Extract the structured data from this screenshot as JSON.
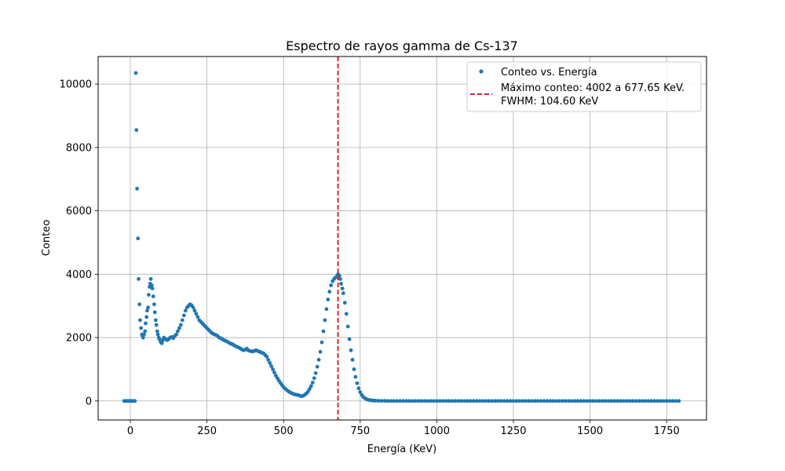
{
  "chart_data": {
    "type": "scatter",
    "title": "Espectro de rayos gamma de Cs-137",
    "xlabel": "Energía (KeV)",
    "ylabel": "Conteo",
    "xlim": [
      -105,
      1880
    ],
    "ylim": [
      -600,
      10870
    ],
    "xticks": [
      0,
      250,
      500,
      750,
      1000,
      1250,
      1500,
      1750
    ],
    "yticks": [
      0,
      2000,
      4000,
      6000,
      8000,
      10000
    ],
    "grid": true,
    "legend_position": "top-right",
    "series": [
      {
        "name": "Conteo vs. Energía",
        "color": "#1f77b4",
        "points": [
          [
            -20,
            0
          ],
          [
            -15,
            0
          ],
          [
            -10,
            0
          ],
          [
            -5,
            0
          ],
          [
            0,
            0
          ],
          [
            5,
            0
          ],
          [
            10,
            0
          ],
          [
            15,
            0
          ],
          [
            18,
            10350
          ],
          [
            20,
            8550
          ],
          [
            22,
            6700
          ],
          [
            25,
            5130
          ],
          [
            27,
            3850
          ],
          [
            30,
            3050
          ],
          [
            32,
            2550
          ],
          [
            35,
            2300
          ],
          [
            38,
            2100
          ],
          [
            40,
            2050
          ],
          [
            42,
            2000
          ],
          [
            45,
            2100
          ],
          [
            48,
            2200
          ],
          [
            50,
            2450
          ],
          [
            53,
            2650
          ],
          [
            55,
            2850
          ],
          [
            58,
            2950
          ],
          [
            60,
            3350
          ],
          [
            63,
            3600
          ],
          [
            65,
            3700
          ],
          [
            67,
            3850
          ],
          [
            70,
            3650
          ],
          [
            72,
            3550
          ],
          [
            75,
            3300
          ],
          [
            78,
            3050
          ],
          [
            80,
            2800
          ],
          [
            83,
            2550
          ],
          [
            85,
            2400
          ],
          [
            88,
            2200
          ],
          [
            90,
            2100
          ],
          [
            93,
            2000
          ],
          [
            95,
            1950
          ],
          [
            98,
            1900
          ],
          [
            100,
            1850
          ],
          [
            103,
            1820
          ],
          [
            105,
            1900
          ],
          [
            108,
            1950
          ],
          [
            110,
            2000
          ],
          [
            115,
            1950
          ],
          [
            120,
            1920
          ],
          [
            125,
            1950
          ],
          [
            130,
            2000
          ],
          [
            135,
            2020
          ],
          [
            140,
            1980
          ],
          [
            145,
            2050
          ],
          [
            150,
            2100
          ],
          [
            155,
            2200
          ],
          [
            160,
            2300
          ],
          [
            165,
            2400
          ],
          [
            170,
            2550
          ],
          [
            175,
            2700
          ],
          [
            180,
            2850
          ],
          [
            185,
            2950
          ],
          [
            190,
            3000
          ],
          [
            195,
            3050
          ],
          [
            200,
            3020
          ],
          [
            205,
            2950
          ],
          [
            210,
            2850
          ],
          [
            215,
            2750
          ],
          [
            220,
            2650
          ],
          [
            225,
            2550
          ],
          [
            230,
            2500
          ],
          [
            235,
            2450
          ],
          [
            240,
            2400
          ],
          [
            245,
            2350
          ],
          [
            250,
            2300
          ],
          [
            255,
            2250
          ],
          [
            260,
            2200
          ],
          [
            265,
            2150
          ],
          [
            270,
            2120
          ],
          [
            275,
            2100
          ],
          [
            280,
            2080
          ],
          [
            285,
            2050
          ],
          [
            290,
            2000
          ],
          [
            295,
            1980
          ],
          [
            300,
            1950
          ],
          [
            305,
            1920
          ],
          [
            310,
            1900
          ],
          [
            315,
            1880
          ],
          [
            320,
            1850
          ],
          [
            325,
            1820
          ],
          [
            330,
            1800
          ],
          [
            335,
            1780
          ],
          [
            340,
            1750
          ],
          [
            345,
            1720
          ],
          [
            350,
            1700
          ],
          [
            355,
            1680
          ],
          [
            360,
            1650
          ],
          [
            365,
            1620
          ],
          [
            370,
            1600
          ],
          [
            375,
            1620
          ],
          [
            380,
            1650
          ],
          [
            385,
            1600
          ],
          [
            390,
            1580
          ],
          [
            395,
            1570
          ],
          [
            400,
            1560
          ],
          [
            405,
            1580
          ],
          [
            410,
            1600
          ],
          [
            415,
            1580
          ],
          [
            420,
            1560
          ],
          [
            425,
            1540
          ],
          [
            430,
            1520
          ],
          [
            435,
            1500
          ],
          [
            440,
            1450
          ],
          [
            445,
            1400
          ],
          [
            450,
            1300
          ],
          [
            455,
            1200
          ],
          [
            460,
            1100
          ],
          [
            465,
            1000
          ],
          [
            470,
            900
          ],
          [
            475,
            800
          ],
          [
            480,
            720
          ],
          [
            485,
            640
          ],
          [
            490,
            570
          ],
          [
            495,
            500
          ],
          [
            500,
            440
          ],
          [
            505,
            390
          ],
          [
            510,
            350
          ],
          [
            515,
            310
          ],
          [
            520,
            280
          ],
          [
            525,
            250
          ],
          [
            530,
            230
          ],
          [
            535,
            210
          ],
          [
            540,
            200
          ],
          [
            545,
            190
          ],
          [
            550,
            180
          ],
          [
            555,
            160
          ],
          [
            560,
            150
          ],
          [
            565,
            170
          ],
          [
            570,
            200
          ],
          [
            575,
            240
          ],
          [
            580,
            300
          ],
          [
            585,
            380
          ],
          [
            590,
            470
          ],
          [
            595,
            580
          ],
          [
            600,
            720
          ],
          [
            605,
            880
          ],
          [
            610,
            1080
          ],
          [
            615,
            1300
          ],
          [
            620,
            1550
          ],
          [
            625,
            1850
          ],
          [
            630,
            2200
          ],
          [
            635,
            2550
          ],
          [
            640,
            2900
          ],
          [
            645,
            3200
          ],
          [
            650,
            3450
          ],
          [
            655,
            3650
          ],
          [
            660,
            3780
          ],
          [
            665,
            3850
          ],
          [
            670,
            3900
          ],
          [
            675,
            3950
          ],
          [
            678,
            4002
          ],
          [
            682,
            3950
          ],
          [
            685,
            3850
          ],
          [
            688,
            3700
          ],
          [
            692,
            3550
          ],
          [
            695,
            3400
          ],
          [
            700,
            3100
          ],
          [
            705,
            2750
          ],
          [
            710,
            2350
          ],
          [
            715,
            1950
          ],
          [
            720,
            1600
          ],
          [
            725,
            1300
          ],
          [
            730,
            1000
          ],
          [
            735,
            760
          ],
          [
            740,
            560
          ],
          [
            745,
            400
          ],
          [
            750,
            280
          ],
          [
            755,
            190
          ],
          [
            760,
            130
          ],
          [
            765,
            90
          ],
          [
            770,
            60
          ],
          [
            775,
            40
          ],
          [
            780,
            30
          ],
          [
            785,
            20
          ],
          [
            790,
            15
          ],
          [
            795,
            12
          ],
          [
            800,
            10
          ],
          [
            810,
            5
          ],
          [
            820,
            3
          ],
          [
            830,
            2
          ],
          [
            840,
            0
          ],
          [
            850,
            0
          ],
          [
            860,
            0
          ],
          [
            870,
            0
          ],
          [
            880,
            0
          ],
          [
            890,
            0
          ],
          [
            900,
            0
          ],
          [
            910,
            0
          ],
          [
            920,
            0
          ],
          [
            930,
            0
          ],
          [
            940,
            0
          ],
          [
            950,
            0
          ],
          [
            960,
            0
          ],
          [
            970,
            0
          ],
          [
            980,
            0
          ],
          [
            990,
            0
          ],
          [
            1000,
            0
          ],
          [
            1010,
            0
          ],
          [
            1020,
            0
          ],
          [
            1030,
            0
          ],
          [
            1040,
            0
          ],
          [
            1050,
            0
          ],
          [
            1060,
            0
          ],
          [
            1070,
            0
          ],
          [
            1080,
            0
          ],
          [
            1090,
            0
          ],
          [
            1100,
            0
          ],
          [
            1110,
            0
          ],
          [
            1120,
            0
          ],
          [
            1130,
            0
          ],
          [
            1140,
            0
          ],
          [
            1150,
            0
          ],
          [
            1160,
            0
          ],
          [
            1170,
            0
          ],
          [
            1180,
            0
          ],
          [
            1190,
            0
          ],
          [
            1200,
            0
          ],
          [
            1210,
            0
          ],
          [
            1220,
            0
          ],
          [
            1230,
            0
          ],
          [
            1240,
            0
          ],
          [
            1250,
            0
          ],
          [
            1260,
            0
          ],
          [
            1270,
            0
          ],
          [
            1280,
            0
          ],
          [
            1290,
            0
          ],
          [
            1300,
            0
          ],
          [
            1310,
            0
          ],
          [
            1320,
            0
          ],
          [
            1330,
            0
          ],
          [
            1340,
            0
          ],
          [
            1350,
            0
          ],
          [
            1360,
            0
          ],
          [
            1370,
            0
          ],
          [
            1380,
            0
          ],
          [
            1390,
            0
          ],
          [
            1400,
            0
          ],
          [
            1410,
            0
          ],
          [
            1420,
            0
          ],
          [
            1430,
            0
          ],
          [
            1440,
            0
          ],
          [
            1450,
            0
          ],
          [
            1460,
            0
          ],
          [
            1470,
            0
          ],
          [
            1480,
            0
          ],
          [
            1490,
            0
          ],
          [
            1500,
            0
          ],
          [
            1510,
            0
          ],
          [
            1520,
            0
          ],
          [
            1530,
            0
          ],
          [
            1540,
            0
          ],
          [
            1550,
            0
          ],
          [
            1560,
            0
          ],
          [
            1570,
            0
          ],
          [
            1580,
            0
          ],
          [
            1590,
            0
          ],
          [
            1600,
            0
          ],
          [
            1610,
            0
          ],
          [
            1620,
            0
          ],
          [
            1630,
            0
          ],
          [
            1640,
            0
          ],
          [
            1650,
            0
          ],
          [
            1660,
            0
          ],
          [
            1670,
            0
          ],
          [
            1680,
            0
          ],
          [
            1690,
            0
          ],
          [
            1700,
            0
          ],
          [
            1710,
            0
          ],
          [
            1720,
            0
          ],
          [
            1730,
            0
          ],
          [
            1740,
            0
          ],
          [
            1750,
            0
          ],
          [
            1760,
            0
          ],
          [
            1770,
            0
          ],
          [
            1780,
            0
          ],
          [
            1790,
            0
          ]
        ]
      }
    ],
    "vline": {
      "x": 677.65,
      "color": "#d62728",
      "legend_line1": "Máximo conteo: 4002 a 677.65 KeV.",
      "legend_line2": "FWHM: 104.60 KeV"
    }
  }
}
